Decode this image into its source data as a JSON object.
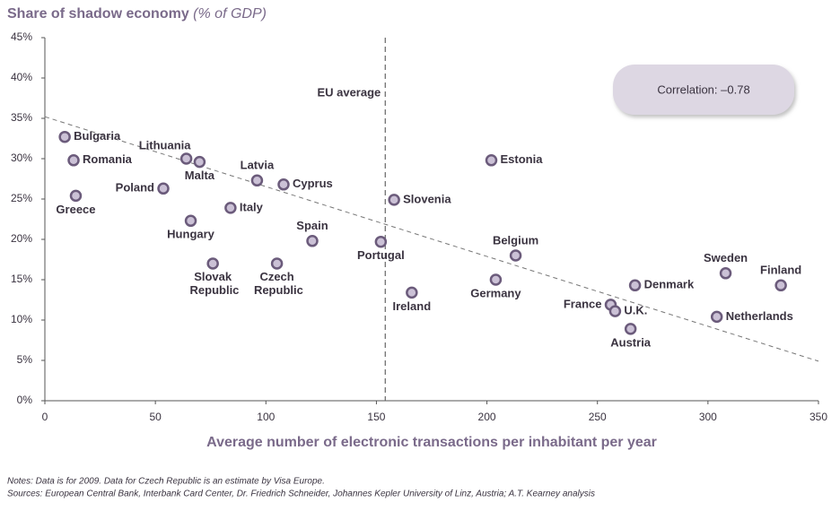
{
  "chart_data": {
    "type": "scatter",
    "title": "Share of shadow economy",
    "title_unit": "(% of GDP)",
    "x_label": "Average number of electronic transactions per inhabitant per year",
    "xlim": [
      0,
      350
    ],
    "xticks": [
      0,
      50,
      100,
      150,
      200,
      250,
      300,
      350
    ],
    "ylim": [
      0,
      45
    ],
    "yticks": [
      {
        "value": 0,
        "label": "0%"
      },
      {
        "value": 5,
        "label": "5%"
      },
      {
        "value": 10,
        "label": "10%"
      },
      {
        "value": 15,
        "label": "15%"
      },
      {
        "value": 20,
        "label": "20%"
      },
      {
        "value": 25,
        "label": "25%"
      },
      {
        "value": 30,
        "label": "30%"
      },
      {
        "value": 35,
        "label": "35%"
      },
      {
        "value": 40,
        "label": "40%"
      },
      {
        "value": 45,
        "label": "45%"
      }
    ],
    "grid": false,
    "color": "#cbc1d6",
    "edge_color": "#6b5b7b",
    "labels": [
      "Bulgaria",
      "Romania",
      "Greece",
      "Poland",
      "Lithuania",
      "Malta",
      "Hungary",
      "Slovak Republic",
      "Italy",
      "Latvia",
      "Cyprus",
      "Czech Republic",
      "Spain",
      "Portugal",
      "Slovenia",
      "Ireland",
      "Estonia",
      "Germany",
      "Belgium",
      "France",
      "U.K.",
      "Austria",
      "Denmark",
      "Sweden",
      "Netherlands",
      "Finland"
    ],
    "x": [
      9,
      13,
      14,
      53.6,
      64,
      70,
      66,
      76,
      84,
      96,
      108,
      105,
      121,
      152,
      158,
      166,
      202,
      204,
      213,
      256,
      258,
      265,
      267,
      308,
      304,
      333
    ],
    "y": [
      32.7,
      29.8,
      25.4,
      26.3,
      30.0,
      29.6,
      22.3,
      17.0,
      23.9,
      27.3,
      26.8,
      17.0,
      19.8,
      19.7,
      24.9,
      13.4,
      29.8,
      15.0,
      18.0,
      11.9,
      11.1,
      8.9,
      14.3,
      15.8,
      10.4,
      14.3
    ],
    "reference_line": {
      "x": 154,
      "label": "EU average"
    },
    "trendline": {
      "x": [
        0,
        350
      ],
      "y": [
        35.2,
        4.9
      ]
    },
    "annotation": "Correlation: –0.78",
    "notes": "Notes: Data is for 2009. Data for Czech Republic is an estimate by Visa Europe.",
    "sources": "Sources: European Central Bank, Interbank Card Center, Dr. Friedrich Schneider, Johannes Kepler University of Linz, Austria; A.T. Kearney analysis"
  }
}
